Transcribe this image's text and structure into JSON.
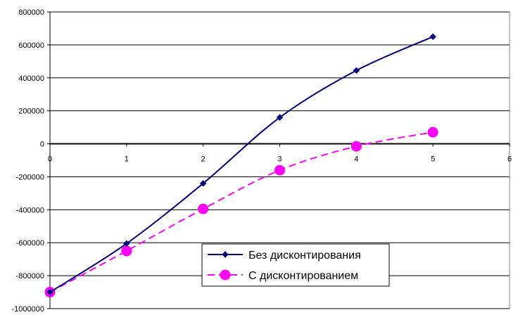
{
  "chart_data": {
    "type": "line",
    "xlim": [
      0,
      6
    ],
    "ylim": [
      -1000000,
      800000
    ],
    "x_ticks": [
      "0",
      "1",
      "2",
      "3",
      "4",
      "5",
      "6"
    ],
    "y_ticks": [
      "800000",
      "600000",
      "400000",
      "200000",
      "0",
      "-200000",
      "-400000",
      "-600000",
      "-800000",
      "-1000000"
    ],
    "grid": "horizontal",
    "legend_position": "bottom-center",
    "series": [
      {
        "name": "Без дисконтирования",
        "color": "#000080",
        "marker": "diamond",
        "line": "solid",
        "x": [
          0,
          1,
          2,
          3,
          4,
          5
        ],
        "y": [
          -900000,
          -605000,
          -240000,
          160000,
          445000,
          650000
        ]
      },
      {
        "name": "С дисконтированием",
        "color": "#ff00ff",
        "marker": "circle",
        "line": "dashed",
        "x": [
          0,
          1,
          2,
          3,
          4,
          5
        ],
        "y": [
          -900000,
          -650000,
          -395000,
          -160000,
          -15000,
          70000
        ]
      }
    ]
  }
}
